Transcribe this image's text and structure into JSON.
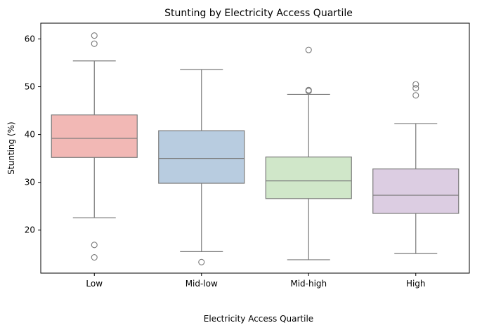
{
  "chart_data": {
    "type": "box",
    "title": "Stunting by Electricity Access Quartile",
    "xlabel": "Electricity Access Quartile",
    "ylabel": "Stunting (%)",
    "categories": [
      "Low",
      "Mid-low",
      "Mid-high",
      "High"
    ],
    "ylim": [
      11.0,
      63.3
    ],
    "yticks": [
      20,
      30,
      40,
      50,
      60
    ],
    "grid": false,
    "boxes": [
      {
        "category": "Low",
        "whisker_low": 22.6,
        "q1": 35.2,
        "median": 39.2,
        "q3": 44.1,
        "whisker_high": 55.4,
        "outliers": [
          60.7,
          59.0,
          16.9,
          14.3
        ],
        "color": "#f2b8b5"
      },
      {
        "category": "Mid-low",
        "whisker_low": 15.5,
        "q1": 29.8,
        "median": 35.0,
        "q3": 40.8,
        "whisker_high": 53.6,
        "outliers": [
          13.3
        ],
        "color": "#b8cce0"
      },
      {
        "category": "Mid-high",
        "whisker_low": 13.8,
        "q1": 26.6,
        "median": 30.3,
        "q3": 35.3,
        "whisker_high": 48.4,
        "outliers": [
          57.7,
          49.3,
          49.1
        ],
        "color": "#d0e7c9"
      },
      {
        "category": "High",
        "whisker_low": 15.1,
        "q1": 23.5,
        "median": 27.3,
        "q3": 32.8,
        "whisker_high": 42.3,
        "outliers": [
          50.5,
          49.7,
          48.2
        ],
        "color": "#dccde2"
      }
    ],
    "line_color": "#7a7a7a"
  }
}
